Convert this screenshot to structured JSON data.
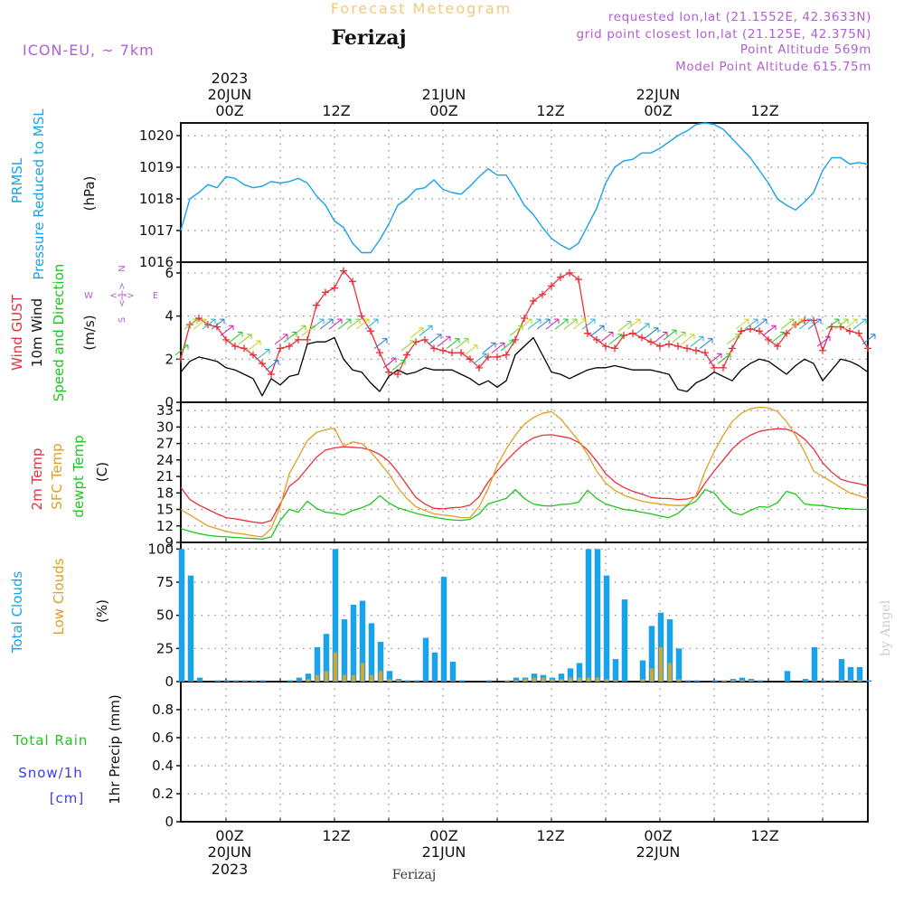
{
  "header": {
    "top_title": "Forecast Meteogram",
    "station": "Ferizaj",
    "model": "ICON-EU, ~ 7km",
    "requested": "requested lon,lat (21.1552E, 42.3633N)",
    "grid_point": "grid point closest lon,lat (21.125E, 42.375N)",
    "point_alt": "Point Altitude 569m",
    "model_alt": "Model Point Altitude 615.75m",
    "credit": "by Angel",
    "footer_station": "Ferizaj"
  },
  "time_axis": {
    "top_year": "2023",
    "top_day_labels": [
      "20JUN",
      "21JUN",
      "22JUN"
    ],
    "hour_labels": [
      "00Z",
      "12Z",
      "00Z",
      "12Z",
      "00Z",
      "12Z"
    ],
    "bottom_hour_labels": [
      "00Z",
      "12Z",
      "00Z",
      "12Z",
      "00Z",
      "12Z"
    ],
    "bottom_day_labels": [
      "20JUN",
      "21JUN",
      "22JUN"
    ],
    "bottom_year": "2023",
    "start_hour": -5,
    "end_hour": 71
  },
  "panel_labels": {
    "p1": [
      "PRMSL",
      "Pressure Reduced to MSL",
      "(hPa)"
    ],
    "p2": [
      "Wind GUST",
      "10m Wind",
      "Speed and Direction",
      "(m/s)"
    ],
    "compass": [
      "N",
      "E",
      "S",
      "W"
    ],
    "p3": [
      "2m Temp",
      "SFC Temp",
      "dewpt Temp",
      "(C)"
    ],
    "p4": [
      "Total Clouds",
      "Low Clouds",
      "(%)"
    ],
    "p5": [
      "Total Rain",
      "Snow/1h",
      "[cm]",
      "1hr Precip (mm)"
    ]
  },
  "colors": {
    "pressure": "#1aa3e8",
    "gust": "#e8313a",
    "wind": "#000000",
    "temp2m": "#e8313a",
    "sfc": "#e0a020",
    "dewpt": "#1cc81c",
    "total_clouds": "#1aa3e8",
    "low_clouds": "#e0a020",
    "rain": "#1cc81c",
    "snow": "#3b3bf0",
    "header_purple": "#b060d0",
    "top_title": "#f5c878"
  },
  "chart_data": [
    {
      "type": "line",
      "title": "PRMSL Pressure Reduced to MSL",
      "ylabel": "(hPa)",
      "ylim": [
        1016,
        1020.4
      ],
      "yticks": [
        "1016",
        "1017",
        "1018",
        "1019",
        "1020"
      ],
      "hours": [
        -5,
        -4,
        -3,
        -2,
        -1,
        0,
        1,
        2,
        3,
        4,
        5,
        6,
        7,
        8,
        9,
        10,
        11,
        12,
        13,
        14,
        15,
        16,
        17,
        18,
        19,
        20,
        21,
        22,
        23,
        24,
        25,
        26,
        27,
        28,
        29,
        30,
        31,
        32,
        33,
        34,
        35,
        36,
        37,
        38,
        39,
        40,
        41,
        42,
        43,
        44,
        45,
        46,
        47,
        48,
        49,
        50,
        51,
        52,
        53,
        54,
        55,
        56,
        57,
        58,
        59,
        60,
        61,
        62,
        63,
        64,
        65,
        66,
        67,
        68,
        69,
        70,
        71
      ],
      "values": [
        1017.0,
        1018.0,
        1018.2,
        1018.45,
        1018.35,
        1018.7,
        1018.65,
        1018.45,
        1018.35,
        1018.4,
        1018.55,
        1018.5,
        1018.55,
        1018.65,
        1018.5,
        1018.1,
        1017.8,
        1017.3,
        1017.1,
        1016.6,
        1016.3,
        1016.3,
        1016.7,
        1017.2,
        1017.8,
        1018.0,
        1018.3,
        1018.35,
        1018.6,
        1018.3,
        1018.2,
        1018.15,
        1018.4,
        1018.7,
        1018.95,
        1018.75,
        1018.75,
        1018.3,
        1017.8,
        1017.5,
        1017.1,
        1016.75,
        1016.55,
        1016.4,
        1016.6,
        1017.15,
        1017.7,
        1018.5,
        1019.0,
        1019.2,
        1019.25,
        1019.45,
        1019.45,
        1019.6,
        1019.8,
        1020.0,
        1020.15,
        1020.35,
        1020.4,
        1020.35,
        1020.2,
        1019.9,
        1019.6,
        1019.3,
        1018.9,
        1018.5,
        1018.0,
        1017.8,
        1017.65,
        1017.9,
        1018.2,
        1018.9,
        1019.3,
        1019.3,
        1019.1,
        1019.15,
        1019.1
      ]
    },
    {
      "type": "line",
      "title": "Wind GUST / 10m Wind Speed and Direction",
      "ylabel": "(m/s)",
      "ylim": [
        0,
        6.5
      ],
      "yticks": [
        "0",
        "2",
        "4",
        "6"
      ],
      "hours": [
        -5,
        -4,
        -3,
        -2,
        -1,
        0,
        1,
        2,
        3,
        4,
        5,
        6,
        7,
        8,
        9,
        10,
        11,
        12,
        13,
        14,
        15,
        16,
        17,
        18,
        19,
        20,
        21,
        22,
        23,
        24,
        25,
        26,
        27,
        28,
        29,
        30,
        31,
        32,
        33,
        34,
        35,
        36,
        37,
        38,
        39,
        40,
        41,
        42,
        43,
        44,
        45,
        46,
        47,
        48,
        49,
        50,
        51,
        52,
        53,
        54,
        55,
        56,
        57,
        58,
        59,
        60,
        61,
        62,
        63,
        64,
        65,
        66,
        67,
        68,
        69,
        70,
        71
      ],
      "series": [
        {
          "name": "Wind GUST",
          "values": [
            2.0,
            3.6,
            3.9,
            3.6,
            3.5,
            2.9,
            2.6,
            2.5,
            2.2,
            1.8,
            1.3,
            2.5,
            2.6,
            2.9,
            2.9,
            4.5,
            5.1,
            5.3,
            6.1,
            5.6,
            4.0,
            3.3,
            2.3,
            1.4,
            1.3,
            2.2,
            2.8,
            2.9,
            2.5,
            2.4,
            2.3,
            2.3,
            2.0,
            1.6,
            2.1,
            2.1,
            2.2,
            2.9,
            3.9,
            4.7,
            5.0,
            5.4,
            5.8,
            6.0,
            5.7,
            3.2,
            2.9,
            2.6,
            2.5,
            3.1,
            3.2,
            3.0,
            2.8,
            2.6,
            2.7,
            2.6,
            2.5,
            2.4,
            2.3,
            1.6,
            1.6,
            2.5,
            3.3,
            3.4,
            3.3,
            2.9,
            2.6,
            3.2,
            3.6,
            3.8,
            3.8,
            2.4,
            3.5,
            3.5,
            3.3,
            3.2,
            2.5
          ]
        },
        {
          "name": "10m Wind",
          "values": [
            1.4,
            1.9,
            2.1,
            2.0,
            1.9,
            1.6,
            1.5,
            1.3,
            1.1,
            0.3,
            1.1,
            0.8,
            1.2,
            1.3,
            2.7,
            2.8,
            2.8,
            3.0,
            2.0,
            1.5,
            1.4,
            0.9,
            0.5,
            1.2,
            1.5,
            1.3,
            1.4,
            1.6,
            1.5,
            1.5,
            1.5,
            1.3,
            1.1,
            0.8,
            1.0,
            0.7,
            1.0,
            2.2,
            2.6,
            3.0,
            2.2,
            1.4,
            1.3,
            1.1,
            1.3,
            1.5,
            1.6,
            1.6,
            1.7,
            1.6,
            1.5,
            1.5,
            1.5,
            1.4,
            1.3,
            0.6,
            0.5,
            0.9,
            1.1,
            1.4,
            1.2,
            1.0,
            1.5,
            1.8,
            2.0,
            1.9,
            1.6,
            1.3,
            1.7,
            2.0,
            1.8,
            1.0,
            1.5,
            2.0,
            1.9,
            1.7,
            1.4
          ]
        }
      ]
    },
    {
      "type": "line",
      "title": "2m Temp / SFC Temp / dewpt Temp",
      "ylabel": "(C)",
      "ylim": [
        9,
        34.5
      ],
      "yticks": [
        "9",
        "12",
        "15",
        "18",
        "21",
        "24",
        "27",
        "30",
        "33"
      ],
      "hours": [
        -5,
        -4,
        -3,
        -2,
        -1,
        0,
        1,
        2,
        3,
        4,
        5,
        6,
        7,
        8,
        9,
        10,
        11,
        12,
        13,
        14,
        15,
        16,
        17,
        18,
        19,
        20,
        21,
        22,
        23,
        24,
        25,
        26,
        27,
        28,
        29,
        30,
        31,
        32,
        33,
        34,
        35,
        36,
        37,
        38,
        39,
        40,
        41,
        42,
        43,
        44,
        45,
        46,
        47,
        48,
        49,
        50,
        51,
        52,
        53,
        54,
        55,
        56,
        57,
        58,
        59,
        60,
        61,
        62,
        63,
        64,
        65,
        66,
        67,
        68,
        69,
        70,
        71
      ],
      "series": [
        {
          "name": "2m Temp",
          "values": [
            19.0,
            16.8,
            15.8,
            15.0,
            14.2,
            13.5,
            13.3,
            13.0,
            12.7,
            12.5,
            13.0,
            16.0,
            19.2,
            20.5,
            22.5,
            24.5,
            25.8,
            26.2,
            26.4,
            26.3,
            26.2,
            25.8,
            25.0,
            23.8,
            21.8,
            19.5,
            17.2,
            16.0,
            15.2,
            15.1,
            15.3,
            15.4,
            15.8,
            17.3,
            20.0,
            22.0,
            23.8,
            25.5,
            27.0,
            28.0,
            28.5,
            28.6,
            28.3,
            28.0,
            27.2,
            25.8,
            23.8,
            21.5,
            20.0,
            19.0,
            18.3,
            17.8,
            17.2,
            17.0,
            17.0,
            16.8,
            16.9,
            17.3,
            19.8,
            22.0,
            24.0,
            26.0,
            27.5,
            28.5,
            29.2,
            29.5,
            29.7,
            29.6,
            29.0,
            27.8,
            26.0,
            23.5,
            21.8,
            20.5,
            20.0,
            19.7,
            19.3
          ]
        },
        {
          "name": "SFC Temp",
          "values": [
            15.0,
            14.0,
            13.0,
            12.0,
            11.5,
            11.0,
            10.7,
            10.5,
            10.2,
            10.0,
            11.5,
            15.5,
            21.5,
            24.5,
            27.5,
            29.0,
            29.5,
            29.8,
            26.5,
            27.3,
            27.0,
            25.5,
            23.5,
            21.5,
            19.0,
            17.0,
            15.5,
            14.8,
            14.2,
            14.0,
            13.8,
            13.5,
            13.5,
            15.5,
            18.8,
            23.0,
            26.0,
            28.5,
            30.5,
            31.7,
            32.5,
            32.8,
            31.5,
            29.5,
            27.5,
            25.0,
            22.0,
            19.8,
            18.5,
            17.6,
            17.0,
            16.5,
            16.2,
            16.0,
            15.8,
            15.7,
            15.8,
            17.5,
            22.0,
            25.5,
            28.5,
            31.0,
            32.5,
            33.3,
            33.6,
            33.5,
            32.8,
            31.0,
            28.5,
            25.5,
            22.0,
            21.0,
            20.0,
            19.0,
            18.0,
            17.5,
            17.0
          ]
        },
        {
          "name": "dewpt Temp",
          "values": [
            11.5,
            11.0,
            10.6,
            10.3,
            10.1,
            10.0,
            9.9,
            9.8,
            9.7,
            9.6,
            10.0,
            13.0,
            15.0,
            14.5,
            16.5,
            15.2,
            14.5,
            14.3,
            14.0,
            14.8,
            15.3,
            16.0,
            17.5,
            16.2,
            15.3,
            14.8,
            14.3,
            13.9,
            13.6,
            13.3,
            13.1,
            13.0,
            13.2,
            14.2,
            16.0,
            16.5,
            17.0,
            18.6,
            17.0,
            16.0,
            15.7,
            15.6,
            15.9,
            16.0,
            16.3,
            18.5,
            17.0,
            16.0,
            15.5,
            15.0,
            14.8,
            14.5,
            14.2,
            13.8,
            13.5,
            14.3,
            15.7,
            16.5,
            18.6,
            18.0,
            16.0,
            14.5,
            14.0,
            14.8,
            15.5,
            15.4,
            16.2,
            18.3,
            17.8,
            16.0,
            15.8,
            15.7,
            15.4,
            15.2,
            15.1,
            15.0,
            15.0
          ]
        }
      ]
    },
    {
      "type": "bar",
      "title": "Total Clouds / Low Clouds",
      "ylabel": "(%)",
      "ylim": [
        0,
        105
      ],
      "yticks": [
        "0",
        "25",
        "50",
        "75",
        "100"
      ],
      "hours": [
        -5,
        -4,
        -3,
        -2,
        -1,
        0,
        1,
        2,
        3,
        4,
        5,
        6,
        7,
        8,
        9,
        10,
        11,
        12,
        13,
        14,
        15,
        16,
        17,
        18,
        19,
        20,
        21,
        22,
        23,
        24,
        25,
        26,
        27,
        28,
        29,
        30,
        31,
        32,
        33,
        34,
        35,
        36,
        37,
        38,
        39,
        40,
        41,
        42,
        43,
        44,
        45,
        46,
        47,
        48,
        49,
        50,
        51,
        52,
        53,
        54,
        55,
        56,
        57,
        58,
        59,
        60,
        61,
        62,
        63,
        64,
        65,
        66,
        67,
        68,
        69,
        70,
        71
      ],
      "series": [
        {
          "name": "Total Clouds",
          "values": [
            100,
            80,
            3,
            0,
            1,
            1,
            1,
            1,
            1,
            1,
            0,
            0,
            1,
            3,
            6,
            26,
            36,
            100,
            47,
            58,
            61,
            44,
            30,
            8,
            2,
            1,
            1,
            33,
            22,
            79,
            15,
            1,
            0,
            0,
            1,
            0,
            1,
            3,
            3,
            6,
            5,
            3,
            6,
            10,
            14,
            100,
            100,
            80,
            17,
            62,
            0,
            16,
            42,
            52,
            47,
            25,
            1,
            1,
            0,
            1,
            1,
            2,
            3,
            2,
            1,
            0,
            0,
            8,
            0,
            2,
            26,
            1,
            1,
            17,
            11,
            11,
            1
          ]
        },
        {
          "name": "Low Clouds",
          "values": [
            0,
            0,
            0,
            0,
            0,
            0,
            0,
            0,
            0,
            0,
            0,
            0,
            0,
            0,
            2,
            5,
            8,
            22,
            5,
            5,
            14,
            5,
            8,
            2,
            1,
            0,
            0,
            0,
            0,
            0,
            0,
            0,
            0,
            0,
            0,
            0,
            1,
            1,
            2,
            3,
            3,
            2,
            2,
            3,
            3,
            3,
            3,
            2,
            1,
            0,
            0,
            2,
            10,
            26,
            14,
            2,
            0,
            0,
            0,
            0,
            1,
            1,
            1,
            1,
            0,
            0,
            0,
            0,
            0,
            0,
            0,
            0,
            0,
            1,
            1,
            1,
            0
          ]
        }
      ]
    },
    {
      "type": "bar",
      "title": "1hr Precip",
      "ylabel": "1hr Precip (mm)",
      "ylim": [
        0,
        1
      ],
      "yticks": [
        "0",
        "0.2",
        "0.4",
        "0.6",
        "0.8"
      ],
      "series": [
        {
          "name": "Total Rain",
          "values": []
        },
        {
          "name": "Snow/1h",
          "values": []
        }
      ]
    }
  ]
}
